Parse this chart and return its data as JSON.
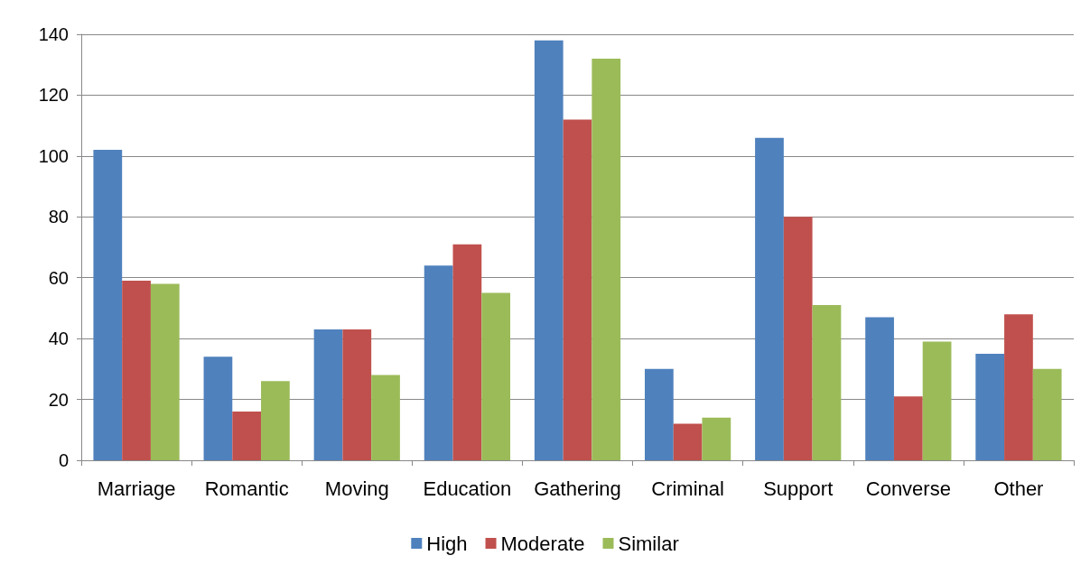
{
  "chart_data": {
    "type": "bar",
    "categories": [
      "Marriage",
      "Romantic",
      "Moving",
      "Education",
      "Gathering",
      "Criminal",
      "Support",
      "Converse",
      "Other"
    ],
    "series": [
      {
        "name": "High",
        "color": "#4f81bd",
        "values": [
          102,
          34,
          43,
          64,
          138,
          30,
          106,
          47,
          35
        ]
      },
      {
        "name": "Moderate",
        "color": "#c0504d",
        "values": [
          59,
          16,
          43,
          71,
          112,
          12,
          80,
          21,
          48
        ]
      },
      {
        "name": "Similar",
        "color": "#9bbb59",
        "values": [
          58,
          26,
          28,
          55,
          132,
          14,
          51,
          39,
          30
        ]
      }
    ],
    "ylim": [
      0,
      140
    ],
    "yticks": [
      0,
      20,
      40,
      60,
      80,
      100,
      120,
      140
    ],
    "grid": "y",
    "legend": "bottom"
  }
}
